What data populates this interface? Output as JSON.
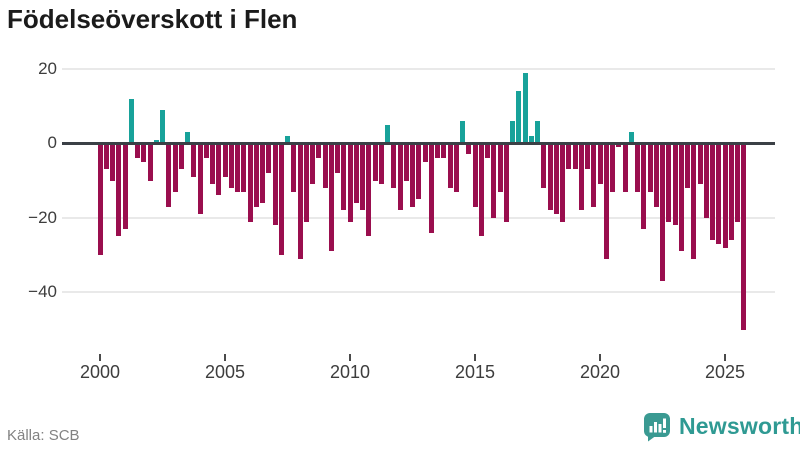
{
  "header": {
    "title": "Födelseöverskott i Flen"
  },
  "footer": {
    "source": "Källa: SCB",
    "brand": "Newsworthy"
  },
  "colors": {
    "positive": "#18a29a",
    "negative": "#9a0e4e",
    "zero_line": "#3b4046",
    "gridline": "#e9e9e9",
    "brand_teal": "#3a9a92",
    "title_text": "#1b1b1b",
    "axis_text": "#3d3d3d",
    "source_text": "#828282"
  },
  "chart_data": {
    "type": "bar",
    "title": "Födelseöverskott i Flen",
    "x_start": "2000-Q1",
    "frequency": "quarterly",
    "x_tick_labels": [
      "2000",
      "2005",
      "2010",
      "2015",
      "2020",
      "2025"
    ],
    "y_ticks": [
      20,
      0,
      -20,
      -40
    ],
    "y_tick_labels": [
      "20",
      "0",
      "−20",
      "−40"
    ],
    "ylim": [
      -52,
      22
    ],
    "grid": "horizontal",
    "legend": "none",
    "series": [
      {
        "name": "Födelseöverskott",
        "values": [
          -30,
          -7,
          -10,
          -25,
          -23,
          12,
          -4,
          -5,
          -10,
          1,
          9,
          -17,
          -13,
          -7,
          3,
          -9,
          -19,
          -4,
          -11,
          -14,
          -9,
          -12,
          -13,
          -13,
          -21,
          -17,
          -16,
          -8,
          -22,
          -30,
          2,
          -13,
          -31,
          -21,
          -11,
          -4,
          -12,
          -29,
          -8,
          -18,
          -21,
          -16,
          -18,
          -25,
          -10,
          -11,
          5,
          -12,
          -18,
          -10,
          -17,
          -15,
          -5,
          -24,
          -4,
          -4,
          -12,
          -13,
          6,
          -3,
          -17,
          -25,
          -4,
          -20,
          -13,
          -21,
          6,
          14,
          19,
          2,
          6,
          -12,
          -18,
          -19,
          -21,
          -7,
          -7,
          -18,
          -7,
          -17,
          -11,
          -31,
          -13,
          -1,
          -13,
          3,
          -13,
          -23,
          -13,
          -17,
          -37,
          -21,
          -22,
          -29,
          -12,
          -31,
          -11,
          -20,
          -26,
          -27,
          -28,
          -26,
          -21,
          -50
        ]
      }
    ]
  }
}
